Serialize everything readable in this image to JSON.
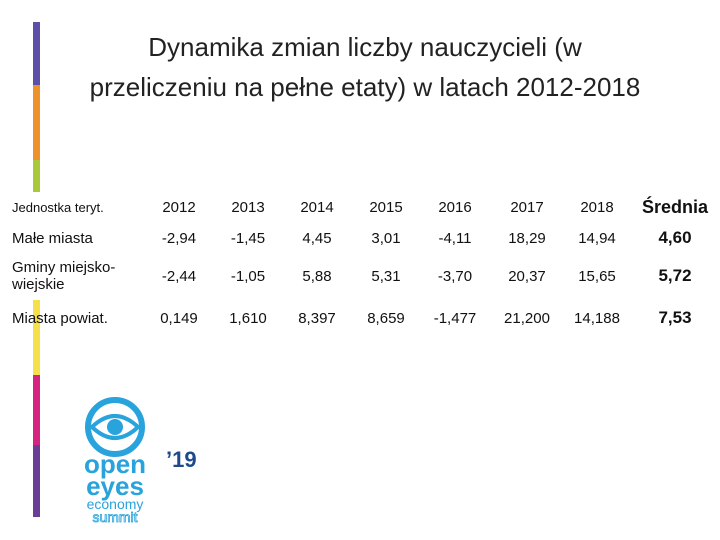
{
  "title_lines": [
    "Dynamika zmian liczby nauczycieli (w",
    "przeliczeniu na pełne etaty) w latach 2012-2018"
  ],
  "table": {
    "header": [
      "Jednostka teryt.",
      "2012",
      "2013",
      "2014",
      "2015",
      "2016",
      "2017",
      "2018",
      "Średnia"
    ],
    "rows": [
      [
        "Małe miasta",
        "-2,94",
        "-1,45",
        "4,45",
        "3,01",
        "-4,11",
        "18,29",
        "14,94",
        "4,60"
      ],
      [
        "Gminy miejsko-wiejskie",
        "-2,44",
        "-1,05",
        "5,88",
        "5,31",
        "-3,70",
        "20,37",
        "15,65",
        "5,72"
      ],
      [
        "Miasta powiat.",
        "0,149",
        "1,610",
        "8,397",
        "8,659",
        "-1,477",
        "21,200",
        "14,188",
        "7,53"
      ]
    ]
  },
  "logo": {
    "line1": "open",
    "year": "’19",
    "line2": "eyes",
    "line3": "economy",
    "line4": "summit"
  }
}
